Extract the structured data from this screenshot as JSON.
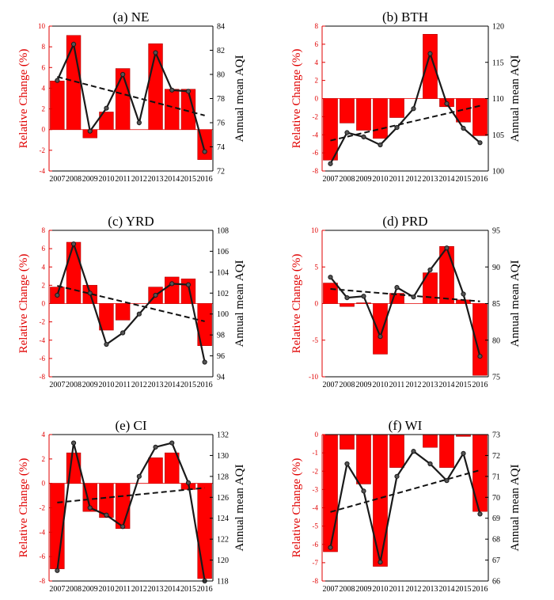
{
  "colors": {
    "bar": "#ff0000",
    "bar_edge": "#b00000",
    "left_axis": "#e00000",
    "line": "#1a1a1a",
    "marker": "#555555",
    "trend": "#111111"
  },
  "chart_data": [
    {
      "type": "bar",
      "title": "(a)  NE",
      "ylabel_left": "Relative Change (%)",
      "ylabel_right": "Annual mean AQI",
      "categories": [
        "2007",
        "2008",
        "2009",
        "2010",
        "2011",
        "2012",
        "2013",
        "2014",
        "2015",
        "2016"
      ],
      "bar_values": [
        4.7,
        9.1,
        -0.8,
        1.7,
        5.9,
        0.0,
        8.3,
        3.9,
        3.9,
        -2.9
      ],
      "line_values": [
        79.5,
        82.5,
        75.3,
        77.2,
        80.0,
        76.0,
        81.8,
        78.7,
        78.6,
        73.6
      ],
      "trend": [
        79.8,
        76.6
      ],
      "ylim_left": [
        -4,
        10
      ],
      "yticks_left": [
        "-4",
        "-2",
        "0",
        "2",
        "4",
        "6",
        "8",
        "10"
      ],
      "ylim_right": [
        72,
        84
      ],
      "yticks_right": [
        "72",
        "74",
        "76",
        "78",
        "80",
        "82",
        "84"
      ]
    },
    {
      "type": "bar",
      "title": "(b)  BTH",
      "ylabel_left": "Relative Change (%)",
      "ylabel_right": "Annual mean AQI",
      "categories": [
        "2007",
        "2008",
        "2009",
        "2010",
        "2011",
        "2012",
        "2013",
        "2014",
        "2015",
        "2016"
      ],
      "bar_values": [
        -6.8,
        -2.7,
        -3.5,
        -4.4,
        -2.1,
        0.0,
        7.1,
        -0.9,
        -2.6,
        -4.1
      ],
      "line_values": [
        101.0,
        105.3,
        104.7,
        103.6,
        106.0,
        108.6,
        116.2,
        109.3,
        105.9,
        103.9
      ],
      "trend": [
        104.2,
        109.0
      ],
      "ylim_left": [
        -8,
        8
      ],
      "yticks_left": [
        "-8",
        "-6",
        "-4",
        "-2",
        "0",
        "2",
        "4",
        "6",
        "8"
      ],
      "ylim_right": [
        100,
        120
      ],
      "yticks_right": [
        "100",
        "105",
        "110",
        "115",
        "120"
      ]
    },
    {
      "type": "bar",
      "title": "(c)  YRD",
      "ylabel_left": "Relative Change (%)",
      "ylabel_right": "Annual mean AQI",
      "categories": [
        "2007",
        "2008",
        "2009",
        "2010",
        "2011",
        "2012",
        "2013",
        "2014",
        "2015",
        "2016"
      ],
      "bar_values": [
        1.8,
        6.7,
        2.0,
        -2.9,
        -1.8,
        0.0,
        1.8,
        2.9,
        2.7,
        -4.6
      ],
      "line_values": [
        101.8,
        106.7,
        102.0,
        97.1,
        98.2,
        100.0,
        101.8,
        102.9,
        102.8,
        95.4
      ],
      "trend": [
        102.7,
        99.3
      ],
      "ylim_left": [
        -8,
        8
      ],
      "yticks_left": [
        "-8",
        "-6",
        "-4",
        "-2",
        "0",
        "2",
        "4",
        "6",
        "8"
      ],
      "ylim_right": [
        94,
        108
      ],
      "yticks_right": [
        "94",
        "96",
        "98",
        "100",
        "102",
        "104",
        "106",
        "108"
      ]
    },
    {
      "type": "bar",
      "title": "(d)  PRD",
      "ylabel_left": "Relative Change (%)",
      "ylabel_right": "Annual mean AQI",
      "categories": [
        "2007",
        "2008",
        "2009",
        "2010",
        "2011",
        "2012",
        "2013",
        "2014",
        "2015",
        "2016"
      ],
      "bar_values": [
        2.8,
        -0.4,
        0.1,
        -6.9,
        1.4,
        0.0,
        4.2,
        7.8,
        0.5,
        -9.8
      ],
      "line_values": [
        88.6,
        85.8,
        86.0,
        80.5,
        87.2,
        85.9,
        89.6,
        92.6,
        86.3,
        77.8
      ],
      "trend": [
        87.0,
        85.3
      ],
      "ylim_left": [
        -10,
        10
      ],
      "yticks_left": [
        "-10",
        "-5",
        "0",
        "5",
        "10"
      ],
      "ylim_right": [
        75,
        95
      ],
      "yticks_right": [
        "75",
        "80",
        "85",
        "90",
        "95"
      ]
    },
    {
      "type": "bar",
      "title": "(e)  CI",
      "ylabel_left": "Relative Change (%)",
      "ylabel_right": "Annual mean AQI",
      "categories": [
        "2007",
        "2008",
        "2009",
        "2010",
        "2011",
        "2012",
        "2013",
        "2014",
        "2015",
        "2016"
      ],
      "bar_values": [
        -7.0,
        2.5,
        -2.3,
        -2.8,
        -3.7,
        0.0,
        2.1,
        2.5,
        -0.5,
        -7.8
      ],
      "line_values": [
        119.0,
        131.2,
        125.0,
        124.3,
        123.2,
        128.0,
        130.8,
        131.2,
        127.4,
        118.0
      ],
      "trend": [
        125.5,
        126.9
      ],
      "ylim_left": [
        -8,
        4
      ],
      "yticks_left": [
        "-8",
        "-6",
        "-4",
        "-2",
        "0",
        "2",
        "4"
      ],
      "ylim_right": [
        118,
        132
      ],
      "yticks_right": [
        "118",
        "120",
        "122",
        "124",
        "126",
        "128",
        "130",
        "132"
      ]
    },
    {
      "type": "bar",
      "title": "(f)  WI",
      "ylabel_left": "Relative Change (%)",
      "ylabel_right": "Annual mean AQI",
      "categories": [
        "2007",
        "2008",
        "2009",
        "2010",
        "2011",
        "2012",
        "2013",
        "2014",
        "2015",
        "2016"
      ],
      "bar_values": [
        -6.4,
        -0.8,
        -2.7,
        -7.2,
        -1.8,
        0.0,
        -0.7,
        -1.8,
        -0.1,
        -4.2
      ],
      "line_values": [
        67.6,
        71.6,
        70.3,
        66.9,
        71.0,
        72.2,
        71.6,
        70.8,
        72.1,
        69.2
      ],
      "trend": [
        69.3,
        71.3
      ],
      "ylim_left": [
        -8,
        0
      ],
      "yticks_left": [
        "-8",
        "-7",
        "-6",
        "-5",
        "-4",
        "-3",
        "-2",
        "-1",
        "0"
      ],
      "ylim_right": [
        66,
        73
      ],
      "yticks_right": [
        "66",
        "67",
        "68",
        "69",
        "70",
        "71",
        "72",
        "73"
      ]
    }
  ]
}
